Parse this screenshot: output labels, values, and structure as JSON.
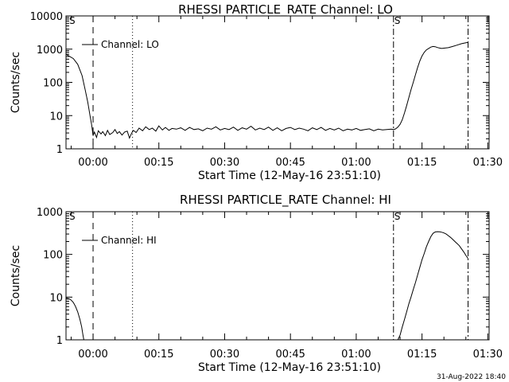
{
  "footer": {
    "timestamp": "31-Aug-2022 18:40"
  },
  "chart_data": [
    {
      "type": "line",
      "title": "RHESSI PARTICLE_RATE Channel: LO",
      "xlabel": "Start Time (12-May-16 23:51:10)",
      "ylabel": "Counts/sec",
      "yscale": "log",
      "ylim": [
        1,
        10000
      ],
      "xlim": [
        -6.17,
        90.3
      ],
      "x_units": "minutes after 00:00 (12-May-16 23:51:10 start)",
      "xticks": [
        0,
        15,
        30,
        45,
        60,
        75,
        90
      ],
      "xtick_labels": [
        "00:00",
        "00:15",
        "00:30",
        "00:45",
        "01:00",
        "01:15",
        "01:30"
      ],
      "yticks": [
        1,
        10,
        100,
        1000,
        10000
      ],
      "ytick_labels": [
        "1",
        "10",
        "100",
        "1000",
        "10000"
      ],
      "legend": {
        "label": "Channel: LO",
        "placement": "top-left"
      },
      "markers": {
        "S_left": "S",
        "S_right": "S"
      },
      "vlines": [
        {
          "x": 0,
          "style": "dashed"
        },
        {
          "x": 9.0,
          "style": "dotted"
        },
        {
          "x": 68.5,
          "style": "dashdot"
        },
        {
          "x": 85.5,
          "style": "dashdot"
        }
      ],
      "series": [
        {
          "name": "Channel: LO",
          "x": [
            -6.17,
            -5.5,
            -4.5,
            -3.5,
            -2.5,
            -1.8,
            -1.2,
            -0.7,
            -0.3,
            0.0,
            0.3,
            0.8,
            1.2,
            1.8,
            2.2,
            2.8,
            3.3,
            3.8,
            4.5,
            5.0,
            5.5,
            6.0,
            6.6,
            7.2,
            7.8,
            8.3,
            8.8,
            9.2,
            9.8,
            10.5,
            11.3,
            12.0,
            12.8,
            13.5,
            14.3,
            15.0,
            15.8,
            16.5,
            17.3,
            18.0,
            19.0,
            20.0,
            21.0,
            22.0,
            23.0,
            24.0,
            25.0,
            26.0,
            27.0,
            28.0,
            29.0,
            30.0,
            31.0,
            32.0,
            33.0,
            34.0,
            35.0,
            36.0,
            37.0,
            38.0,
            39.0,
            40.0,
            41.0,
            42.0,
            43.0,
            44.0,
            45.0,
            46.0,
            47.0,
            48.0,
            49.0,
            50.0,
            51.0,
            52.0,
            53.0,
            54.0,
            55.0,
            56.0,
            57.0,
            58.0,
            59.0,
            60.0,
            61.0,
            62.0,
            63.0,
            64.0,
            65.0,
            66.0,
            67.0,
            68.0,
            68.5,
            69.0,
            69.5,
            70.0,
            70.5,
            71.0,
            71.5,
            72.0,
            72.5,
            73.0,
            73.5,
            74.0,
            74.5,
            75.0,
            75.5,
            76.0,
            76.5,
            77.0,
            77.5,
            78.0,
            78.5,
            79.0,
            79.5,
            80.0,
            81.0,
            82.0,
            83.0,
            84.0,
            85.0,
            85.5
          ],
          "values": [
            700,
            620,
            520,
            350,
            160,
            60,
            25,
            10,
            5,
            2.5,
            3.2,
            2.2,
            3.5,
            2.8,
            3.3,
            2.5,
            3.6,
            2.7,
            3.1,
            3.8,
            2.9,
            3.3,
            2.6,
            3.2,
            3.4,
            2.1,
            3.0,
            3.6,
            3.1,
            4.2,
            3.5,
            4.6,
            3.8,
            4.2,
            3.4,
            4.9,
            3.7,
            4.4,
            3.6,
            4.1,
            3.9,
            4.3,
            3.6,
            4.4,
            3.8,
            4.0,
            3.5,
            4.2,
            3.9,
            4.6,
            3.7,
            4.1,
            3.8,
            4.5,
            3.6,
            4.3,
            3.9,
            4.8,
            3.7,
            4.2,
            3.8,
            4.5,
            3.6,
            4.3,
            3.5,
            4.1,
            4.4,
            3.8,
            4.2,
            3.9,
            3.5,
            4.3,
            3.8,
            4.4,
            3.6,
            4.1,
            3.7,
            4.2,
            3.5,
            3.9,
            3.7,
            4.1,
            3.6,
            3.8,
            4.0,
            3.5,
            3.9,
            3.7,
            3.8,
            3.9,
            3.8,
            4.0,
            4.5,
            5.5,
            7.5,
            12,
            20,
            35,
            60,
            100,
            170,
            280,
            440,
            620,
            800,
            950,
            1050,
            1150,
            1200,
            1180,
            1120,
            1080,
            1050,
            1070,
            1110,
            1200,
            1320,
            1460,
            1550,
            1600
          ]
        }
      ]
    },
    {
      "type": "line",
      "title": "RHESSI PARTICLE_RATE Channel: HI",
      "xlabel": "Start Time (12-May-16 23:51:10)",
      "ylabel": "Counts/sec",
      "yscale": "log",
      "ylim": [
        1,
        1000
      ],
      "xlim": [
        -6.17,
        90.3
      ],
      "x_units": "minutes after 00:00 (12-May-16 23:51:10 start)",
      "xticks": [
        0,
        15,
        30,
        45,
        60,
        75,
        90
      ],
      "xtick_labels": [
        "00:00",
        "00:15",
        "00:30",
        "00:45",
        "01:00",
        "01:15",
        "01:30"
      ],
      "yticks": [
        1,
        10,
        100,
        1000
      ],
      "ytick_labels": [
        "1",
        "10",
        "100",
        "1000"
      ],
      "legend": {
        "label": "Channel: HI",
        "placement": "top-left"
      },
      "markers": {
        "S_left": "S",
        "S_right": "S"
      },
      "vlines": [
        {
          "x": 0,
          "style": "dashed"
        },
        {
          "x": 9.0,
          "style": "dotted"
        },
        {
          "x": 68.5,
          "style": "dashdot"
        },
        {
          "x": 85.5,
          "style": "dashdot"
        }
      ],
      "series": [
        {
          "name": "Channel: HI",
          "segments": [
            {
              "x": [
                -6.17,
                -5.5,
                -5.0,
                -4.5,
                -4.0,
                -3.5,
                -3.0,
                -2.6,
                -2.3,
                -2.1
              ],
              "values": [
                9.5,
                9.2,
                8.5,
                7.5,
                6.0,
                4.5,
                3.0,
                2.0,
                1.3,
                1.0
              ]
            },
            {
              "x": [
                69.5,
                70.0,
                70.5,
                71.0,
                71.5,
                72.0,
                72.5,
                73.0,
                73.5,
                74.0,
                74.5,
                75.0,
                75.5,
                76.0,
                76.5,
                77.0,
                77.5,
                78.0,
                78.5,
                79.0,
                79.5,
                80.0,
                80.5,
                81.0,
                81.5,
                82.0,
                82.5,
                83.0,
                83.5,
                84.0,
                84.5,
                85.0,
                85.5
              ],
              "values": [
                1.0,
                1.3,
                2.0,
                3.0,
                4.5,
                7.0,
                10,
                15,
                22,
                33,
                50,
                75,
                105,
                150,
                200,
                260,
                310,
                335,
                340,
                338,
                330,
                318,
                300,
                275,
                250,
                225,
                200,
                180,
                160,
                135,
                115,
                95,
                80
              ]
            }
          ]
        }
      ]
    }
  ]
}
